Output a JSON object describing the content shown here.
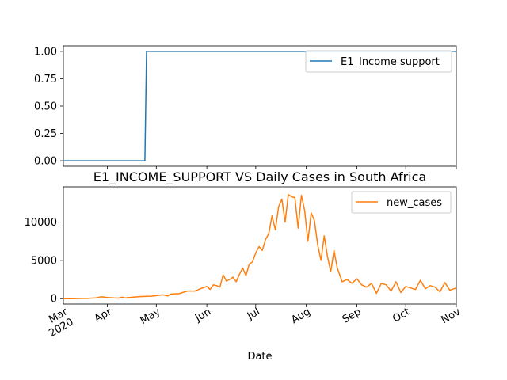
{
  "chart_data": [
    {
      "type": "line",
      "title": "",
      "xlabel": "",
      "ylabel": "",
      "ylim": [
        -0.05,
        1.05
      ],
      "yticks": [
        "0.00",
        "0.25",
        "0.50",
        "0.75",
        "1.00"
      ],
      "ytick_values": [
        0,
        0.25,
        0.5,
        0.75,
        1.0
      ],
      "legend_position": "top-right",
      "series": [
        {
          "name": "E1_Income support",
          "color": "#1f77b4",
          "x": [
            "2020-03-05",
            "2020-04-24",
            "2020-04-25",
            "2020-11-01"
          ],
          "values": [
            0,
            0,
            1,
            1
          ]
        }
      ]
    },
    {
      "type": "line",
      "title": "E1_INCOME_SUPPORT VS Daily Cases in South Africa",
      "xlabel": "Date",
      "ylabel": "",
      "ylim": [
        -700,
        14600
      ],
      "yticks": [
        "0",
        "5000",
        "10000"
      ],
      "ytick_values": [
        0,
        5000,
        10000
      ],
      "xlim": [
        "2020-03-05",
        "2020-11-01"
      ],
      "xticks": [
        "Mar\n2020",
        "Apr",
        "May",
        "Jun",
        "Jul",
        "Aug",
        "Sep",
        "Oct",
        "Nov"
      ],
      "xtick_dates": [
        "2020-03-01",
        "2020-04-01",
        "2020-05-01",
        "2020-06-01",
        "2020-07-01",
        "2020-08-01",
        "2020-09-01",
        "2020-10-01",
        "2020-11-01"
      ],
      "legend_position": "top-right",
      "series": [
        {
          "name": "new_cases",
          "color": "#ff7f0e",
          "x": [
            "2020-03-05",
            "2020-03-10",
            "2020-03-15",
            "2020-03-20",
            "2020-03-25",
            "2020-03-28",
            "2020-04-01",
            "2020-04-05",
            "2020-04-08",
            "2020-04-10",
            "2020-04-12",
            "2020-04-15",
            "2020-04-20",
            "2020-04-25",
            "2020-04-28",
            "2020-05-01",
            "2020-05-05",
            "2020-05-08",
            "2020-05-10",
            "2020-05-15",
            "2020-05-20",
            "2020-05-25",
            "2020-05-28",
            "2020-06-01",
            "2020-06-03",
            "2020-06-05",
            "2020-06-07",
            "2020-06-09",
            "2020-06-11",
            "2020-06-13",
            "2020-06-15",
            "2020-06-17",
            "2020-06-19",
            "2020-06-21",
            "2020-06-23",
            "2020-06-25",
            "2020-06-27",
            "2020-06-29",
            "2020-07-01",
            "2020-07-03",
            "2020-07-05",
            "2020-07-07",
            "2020-07-09",
            "2020-07-11",
            "2020-07-13",
            "2020-07-15",
            "2020-07-17",
            "2020-07-19",
            "2020-07-21",
            "2020-07-23",
            "2020-07-25",
            "2020-07-27",
            "2020-07-29",
            "2020-07-31",
            "2020-08-02",
            "2020-08-04",
            "2020-08-06",
            "2020-08-08",
            "2020-08-10",
            "2020-08-12",
            "2020-08-14",
            "2020-08-16",
            "2020-08-18",
            "2020-08-20",
            "2020-08-23",
            "2020-08-26",
            "2020-08-29",
            "2020-09-01",
            "2020-09-04",
            "2020-09-07",
            "2020-09-10",
            "2020-09-13",
            "2020-09-16",
            "2020-09-19",
            "2020-09-22",
            "2020-09-25",
            "2020-09-28",
            "2020-10-01",
            "2020-10-04",
            "2020-10-07",
            "2020-10-10",
            "2020-10-13",
            "2020-10-16",
            "2020-10-19",
            "2020-10-22",
            "2020-10-25",
            "2020-10-28",
            "2020-11-01"
          ],
          "values": [
            0,
            2,
            20,
            50,
            100,
            250,
            150,
            100,
            80,
            200,
            100,
            170,
            250,
            300,
            320,
            400,
            500,
            350,
            600,
            650,
            1000,
            1000,
            1300,
            1600,
            1200,
            1800,
            1700,
            1500,
            3100,
            2300,
            2500,
            2800,
            2200,
            3200,
            4000,
            3000,
            4500,
            4800,
            6000,
            6800,
            6300,
            7700,
            8500,
            10800,
            9000,
            12000,
            13000,
            10000,
            13600,
            13300,
            13200,
            9200,
            13500,
            11500,
            7500,
            11200,
            10200,
            7000,
            5000,
            8200,
            5500,
            3500,
            6300,
            4000,
            2200,
            2500,
            2000,
            2600,
            1800,
            1500,
            2000,
            700,
            2000,
            1800,
            1000,
            2200,
            800,
            1600,
            1400,
            1200,
            2400,
            1300,
            1700,
            1500,
            900,
            2100,
            1100,
            1400
          ]
        }
      ]
    }
  ]
}
